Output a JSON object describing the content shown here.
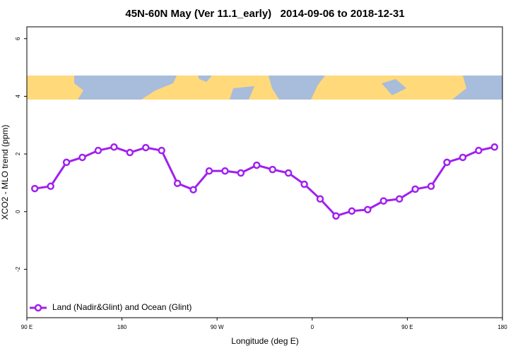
{
  "chart_data": {
    "type": "line",
    "title": "45N-60N May (Ver 11.1_early)   2014-09-06 to 2018-12-31",
    "x_label": "Longitude (deg E)",
    "y_label": "XCO2 - MLO trend (ppm)",
    "x": [
      97.5,
      112.5,
      127.5,
      142.5,
      157.5,
      172.5,
      187.5,
      202.5,
      217.5,
      232.5,
      247.5,
      262.5,
      277.5,
      292.5,
      307.5,
      322.5,
      337.5,
      352.5,
      367.5,
      382.5,
      397.5,
      412.5,
      427.5,
      442.5,
      457.5,
      472.5,
      487.5,
      502.5,
      517.5,
      532.5
    ],
    "series": [
      {
        "name": "Land (Nadir&Glint) and Ocean (Glint)",
        "color": "#a020f0",
        "values": [
          0.8,
          0.88,
          1.71,
          1.88,
          2.12,
          2.24,
          2.05,
          2.22,
          2.12,
          0.98,
          0.76,
          1.41,
          1.41,
          1.34,
          1.61,
          1.46,
          1.34,
          0.95,
          0.44,
          -0.15,
          0.02,
          0.07,
          0.37,
          0.44,
          0.78,
          0.88,
          1.71,
          1.88,
          2.12,
          2.24
        ]
      }
    ],
    "xlim": [
      90,
      540
    ],
    "xticks": [
      {
        "value": 90,
        "label": "90 E"
      },
      180,
      {
        "value": 270,
        "label": "90 W"
      },
      {
        "value": 360,
        "label": "0"
      },
      {
        "value": 450,
        "label": "90 E"
      },
      {
        "value": 540,
        "label": "180"
      }
    ],
    "ylim": [
      -3.68,
      6.41
    ],
    "yticks": [
      -2,
      0,
      2,
      4,
      6
    ],
    "legend": "bottom-left"
  }
}
